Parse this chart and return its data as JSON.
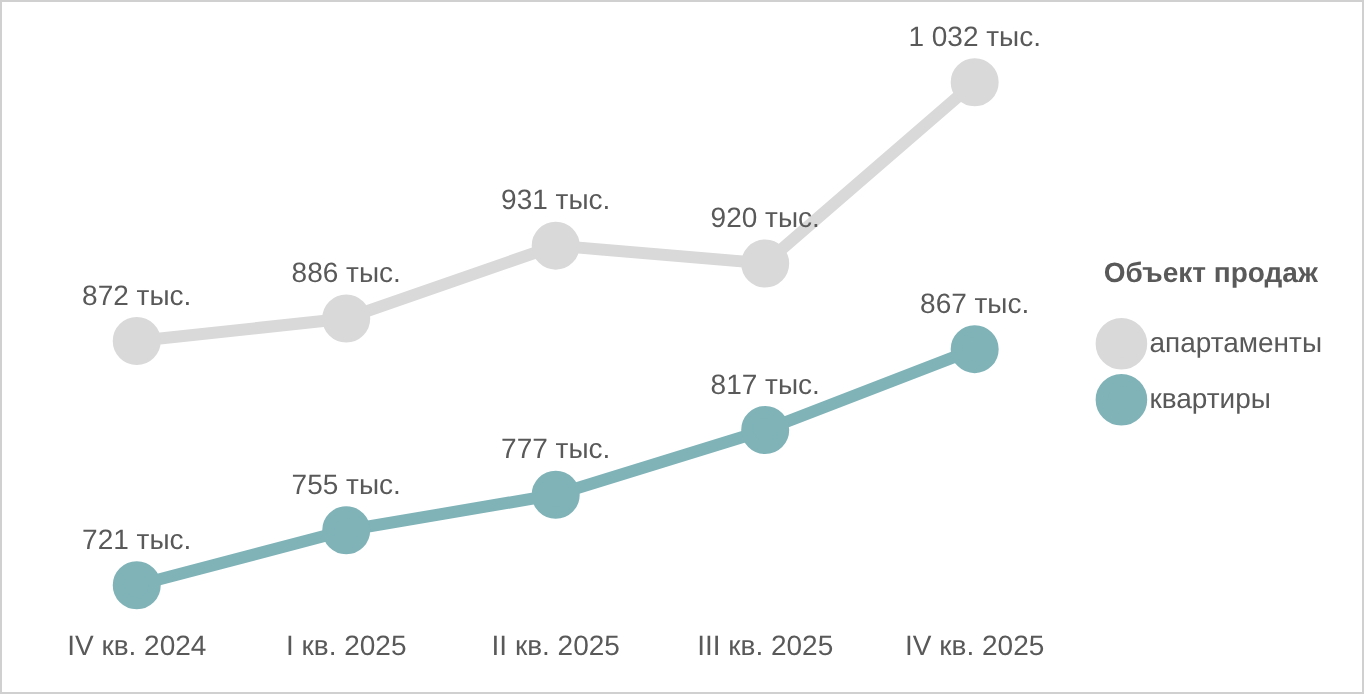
{
  "chart_data": {
    "type": "line",
    "legend_title": "Объект продаж",
    "legend": "right",
    "marker": "circle",
    "line_style": "solid",
    "grid": false,
    "tick_labels": "x",
    "data_labels": true,
    "categories": [
      "IV кв. 2024",
      "I кв. 2025",
      "II кв. 2025",
      "III кв. 2025",
      "IV кв. 2025"
    ],
    "series": [
      {
        "name": "апартаменты",
        "color": "#d9d9d9",
        "values": [
          872,
          886,
          931,
          920,
          1032
        ],
        "value_labels": [
          "872 тыс.",
          "886 тыс.",
          "931 тыс.",
          "920 тыс.",
          "1 032 тыс."
        ]
      },
      {
        "name": "квартиры",
        "color": "#7fb3b8",
        "values": [
          721,
          755,
          777,
          817,
          867
        ],
        "value_labels": [
          "721 тыс.",
          "755 тыс.",
          "777 тыс.",
          "817 тыс.",
          "867 тыс."
        ]
      }
    ]
  }
}
